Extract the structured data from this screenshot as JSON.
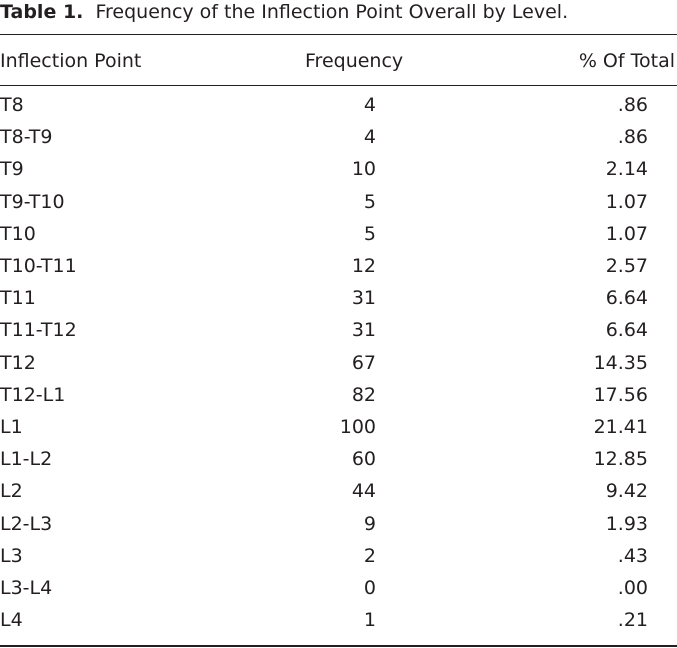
{
  "title": {
    "label": "Table 1.",
    "text": "Frequency of the Inflection Point Overall by Level."
  },
  "table": {
    "headers": [
      "Inflection Point",
      "Frequency",
      "% Of Total"
    ],
    "rows": [
      [
        "T8",
        "4",
        ".86"
      ],
      [
        "T8-T9",
        "4",
        ".86"
      ],
      [
        "T9",
        "10",
        "2.14"
      ],
      [
        "T9-T10",
        "5",
        "1.07"
      ],
      [
        "T10",
        "5",
        "1.07"
      ],
      [
        "T10-T11",
        "12",
        "2.57"
      ],
      [
        "T11",
        "31",
        "6.64"
      ],
      [
        "T11-T12",
        "31",
        "6.64"
      ],
      [
        "T12",
        "67",
        "14.35"
      ],
      [
        "T12-L1",
        "82",
        "17.56"
      ],
      [
        "L1",
        "100",
        "21.41"
      ],
      [
        "L1-L2",
        "60",
        "12.85"
      ],
      [
        "L2",
        "44",
        "9.42"
      ],
      [
        "L2-L3",
        "9",
        "1.93"
      ],
      [
        "L3",
        "2",
        ".43"
      ],
      [
        "L3-L4",
        "0",
        ".00"
      ],
      [
        "L4",
        "1",
        ".21"
      ]
    ]
  }
}
